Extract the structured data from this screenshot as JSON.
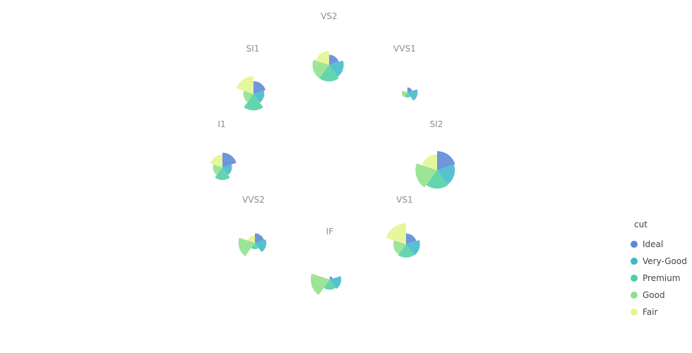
{
  "chart_data": {
    "type": "polar-area",
    "description_free": true,
    "categories": [
      "Ideal",
      "Very-Good",
      "Premium",
      "Good",
      "Fair"
    ],
    "legend": {
      "title": "cut",
      "position": "right",
      "items": [
        {
          "label": "Ideal",
          "color": "#5b86d6"
        },
        {
          "label": "Very-Good",
          "color": "#3fb8c8"
        },
        {
          "label": "Premium",
          "color": "#4ecfa0"
        },
        {
          "label": "Good",
          "color": "#8fe08a"
        },
        {
          "label": "Fair",
          "color": "#e3f58f"
        }
      ]
    },
    "groups": [
      {
        "name": "VS2",
        "values": [
          16,
          23,
          26,
          26,
          22
        ]
      },
      {
        "name": "VVS1",
        "values": [
          8,
          16,
          8,
          9,
          3
        ]
      },
      {
        "name": "SI2",
        "values": [
          30,
          28,
          29,
          34,
          25
        ]
      },
      {
        "name": "VS1",
        "values": [
          17,
          22,
          21,
          20,
          33
        ]
      },
      {
        "name": "IF",
        "values": [
          5,
          18,
          16,
          30,
          3
        ]
      },
      {
        "name": "VVS2",
        "values": [
          15,
          18,
          10,
          26,
          12
        ]
      },
      {
        "name": "I1",
        "values": [
          23,
          15,
          20,
          15,
          20
        ]
      },
      {
        "name": "SI1",
        "values": [
          20,
          17,
          26,
          16,
          28
        ]
      }
    ]
  }
}
